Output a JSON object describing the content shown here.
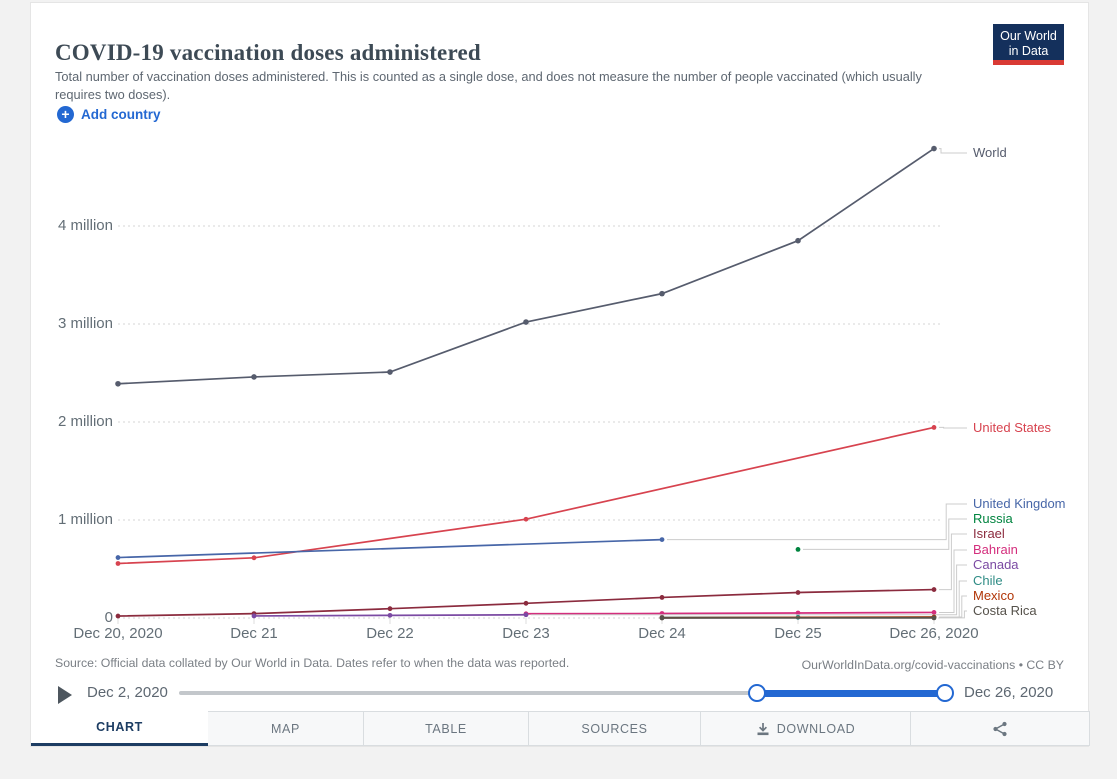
{
  "header": {
    "title": "COVID-19 vaccination doses administered",
    "subtitle": "Total number of vaccination doses administered. This is counted as a single dose, and does not measure the number of people vaccinated (which usually requires two doses).",
    "logo_line1": "Our World",
    "logo_line2": "in Data",
    "logo_bg": "#14305c",
    "logo_bar_color": "#d93a34",
    "add_country_label": "Add country",
    "add_country_icon": "plus-circle-icon",
    "accent_blue": "#2368d2"
  },
  "chart_data": {
    "type": "line",
    "title": "COVID-19 vaccination doses administered",
    "xlabel": "",
    "ylabel": "",
    "ylim": [
      0,
      4900000
    ],
    "grid": "horizontal-dashed",
    "legend_position": "right-edge-labels",
    "x_tick_labels": [
      "Dec 20, 2020",
      "Dec 21",
      "Dec 22",
      "Dec 23",
      "Dec 24",
      "Dec 25",
      "Dec 26, 2020"
    ],
    "y_tick_labels": [
      "0",
      "1 million",
      "2 million",
      "3 million",
      "4 million"
    ],
    "series": [
      {
        "name": "World",
        "color": "#565c6d",
        "points": [
          {
            "date": "Dec 20",
            "value": 2390000
          },
          {
            "date": "Dec 21",
            "value": 2460000
          },
          {
            "date": "Dec 22",
            "value": 2510000
          },
          {
            "date": "Dec 23",
            "value": 3020000
          },
          {
            "date": "Dec 24",
            "value": 3310000
          },
          {
            "date": "Dec 25",
            "value": 3850000
          },
          {
            "date": "Dec 26",
            "value": 4790000
          }
        ]
      },
      {
        "name": "United States",
        "color": "#d7434f",
        "points": [
          {
            "date": "Dec 20",
            "value": 556208
          },
          {
            "date": "Dec 21",
            "value": 614117
          },
          {
            "date": "Dec 23",
            "value": 1008025
          },
          {
            "date": "Dec 26",
            "value": 1944585
          }
        ]
      },
      {
        "name": "United Kingdom",
        "color": "#4766a8",
        "points": [
          {
            "date": "Dec 20",
            "value": 616933
          },
          {
            "date": "Dec 24",
            "value": 800000
          }
        ]
      },
      {
        "name": "Russia",
        "color": "#00843f",
        "points": [
          {
            "date": "Dec 25",
            "value": 700000
          }
        ]
      },
      {
        "name": "Israel",
        "color": "#8b2b3e",
        "points": [
          {
            "date": "Dec 20",
            "value": 20000
          },
          {
            "date": "Dec 21",
            "value": 45000
          },
          {
            "date": "Dec 22",
            "value": 95000
          },
          {
            "date": "Dec 23",
            "value": 150000
          },
          {
            "date": "Dec 24",
            "value": 210000
          },
          {
            "date": "Dec 25",
            "value": 260000
          },
          {
            "date": "Dec 26",
            "value": 290000
          }
        ]
      },
      {
        "name": "Bahrain",
        "color": "#d42e7d",
        "points": [
          {
            "date": "Dec 23",
            "value": 43000
          },
          {
            "date": "Dec 24",
            "value": 46000
          },
          {
            "date": "Dec 25",
            "value": 51000
          },
          {
            "date": "Dec 26",
            "value": 56593
          }
        ]
      },
      {
        "name": "Canada",
        "color": "#7b4aa3",
        "points": [
          {
            "date": "Dec 21",
            "value": 21000
          },
          {
            "date": "Dec 22",
            "value": 27000
          },
          {
            "date": "Dec 23",
            "value": 33000
          }
        ]
      },
      {
        "name": "Chile",
        "color": "#2f8c85",
        "points": [
          {
            "date": "Dec 24",
            "value": 5198
          },
          {
            "date": "Dec 25",
            "value": 7000
          },
          {
            "date": "Dec 26",
            "value": 8649
          }
        ]
      },
      {
        "name": "Mexico",
        "color": "#b13507",
        "points": [
          {
            "date": "Dec 24",
            "value": 2924
          },
          {
            "date": "Dec 26",
            "value": 9579
          }
        ]
      },
      {
        "name": "Costa Rica",
        "color": "#56524b",
        "points": [
          {
            "date": "Dec 24",
            "value": 55
          },
          {
            "date": "Dec 26",
            "value": 1225
          }
        ]
      }
    ]
  },
  "footer": {
    "source": "Source: Official data collated by Our World in Data. Dates refer to when the data was reported.",
    "attribution": "OurWorldInData.org/covid-vaccinations • CC BY"
  },
  "timeline": {
    "play_icon": "play-triangle-icon",
    "start_label": "Dec 2, 2020",
    "end_label": "Dec 26, 2020",
    "track_color": "#c3c7cb",
    "range_color": "#2368d2"
  },
  "tabs": [
    {
      "label": "CHART",
      "active": true
    },
    {
      "label": "MAP",
      "active": false
    },
    {
      "label": "TABLE",
      "active": false
    },
    {
      "label": "SOURCES",
      "active": false
    },
    {
      "label": "DOWNLOAD",
      "active": false,
      "icon": "download-icon"
    },
    {
      "label": "",
      "active": false,
      "icon": "share-icon"
    }
  ]
}
